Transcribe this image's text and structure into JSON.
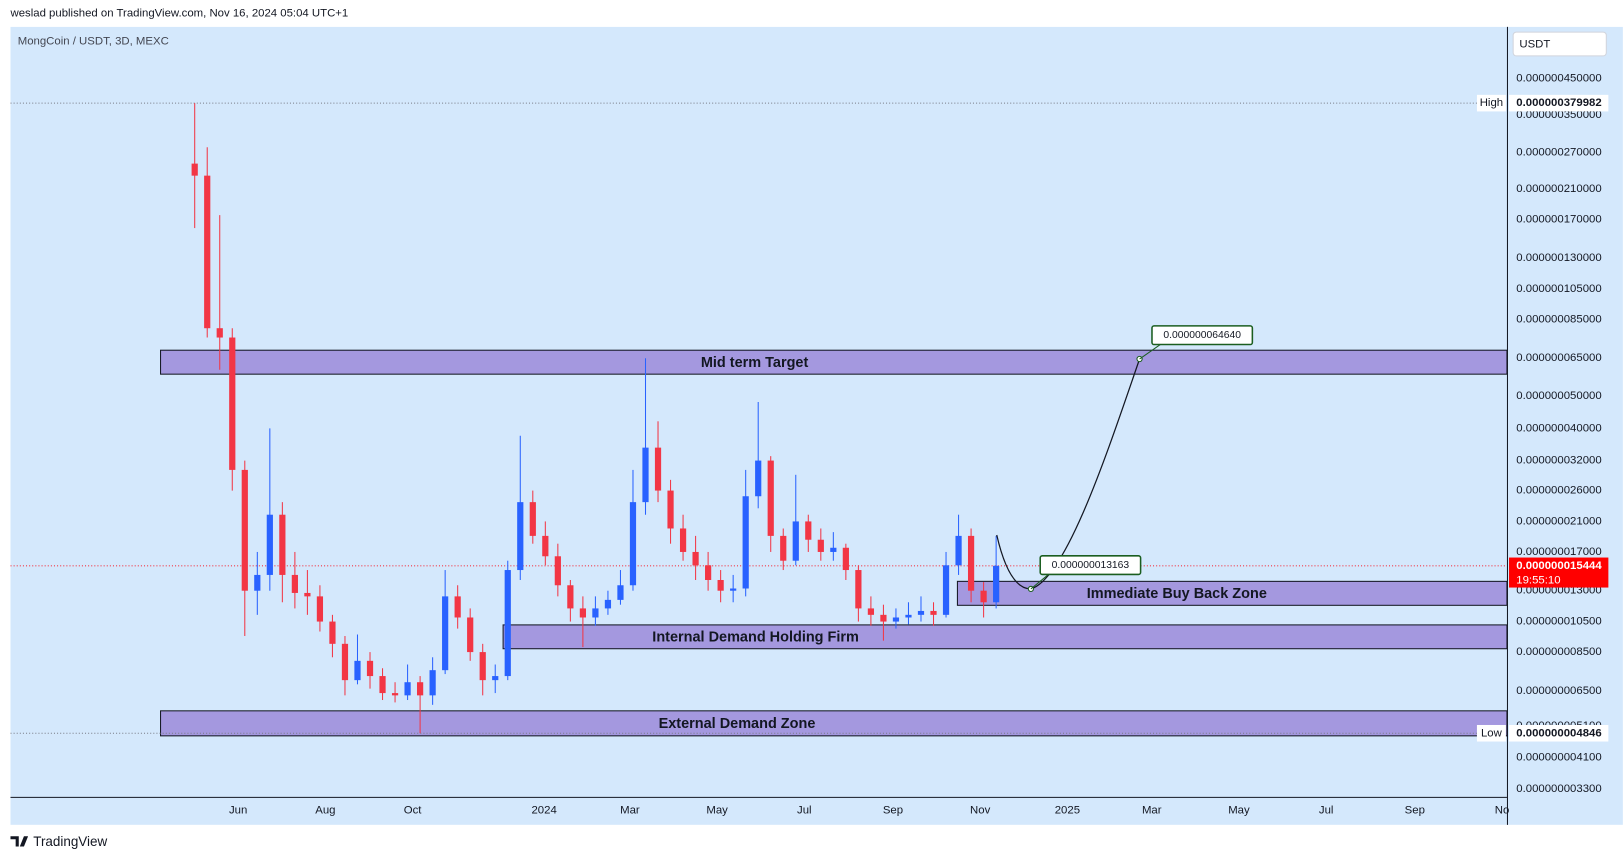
{
  "chart_data": {
    "type": "candlestick",
    "header": "weslad published on TradingView.com, Nov 16, 2024 05:04 UTC+1",
    "symbol": "MongCoin / USDT, 3D, MEXC",
    "currency": "USDT",
    "brand": "TradingView",
    "log_scale": true,
    "up_color": "#2962ff",
    "down_color": "#f23645",
    "ylim": [
      3.12e-09,
      6.44e-07
    ],
    "yticks": [
      {
        "value": 4.5e-07,
        "label": "0.000000450000"
      },
      {
        "value": 3.5e-07,
        "label": "0.000000350000"
      },
      {
        "value": 2.7e-07,
        "label": "0.000000270000"
      },
      {
        "value": 2.1e-07,
        "label": "0.000000210000"
      },
      {
        "value": 1.7e-07,
        "label": "0.000000170000"
      },
      {
        "value": 1.3e-07,
        "label": "0.000000130000"
      },
      {
        "value": 1.05e-07,
        "label": "0.000000105000"
      },
      {
        "value": 8.5e-08,
        "label": "0.000000085000"
      },
      {
        "value": 6.5e-08,
        "label": "0.000000065000"
      },
      {
        "value": 5e-08,
        "label": "0.000000050000"
      },
      {
        "value": 4e-08,
        "label": "0.000000040000"
      },
      {
        "value": 3.2e-08,
        "label": "0.000000032000"
      },
      {
        "value": 2.6e-08,
        "label": "0.000000026000"
      },
      {
        "value": 2.1e-08,
        "label": "0.000000021000"
      },
      {
        "value": 1.7e-08,
        "label": "0.000000017000"
      },
      {
        "value": 1.3e-08,
        "label": "0.000000013000"
      },
      {
        "value": 1.05e-08,
        "label": "0.000000010500"
      },
      {
        "value": 8.5e-09,
        "label": "0.000000008500"
      },
      {
        "value": 6.5e-09,
        "label": "0.000000006500"
      },
      {
        "value": 5.1e-09,
        "label": "0.000000005100"
      },
      {
        "value": 4.1e-09,
        "label": "0.000000004100"
      },
      {
        "value": 3.3e-09,
        "label": "0.000000003300"
      }
    ],
    "xticks": [
      {
        "value": "2023-06",
        "label": "Jun"
      },
      {
        "value": "2023-08",
        "label": "Aug"
      },
      {
        "value": "2023-10",
        "label": "Oct"
      },
      {
        "value": "2024-01",
        "label": "2024"
      },
      {
        "value": "2024-03",
        "label": "Mar"
      },
      {
        "value": "2024-05",
        "label": "May"
      },
      {
        "value": "2024-07",
        "label": "Jul"
      },
      {
        "value": "2024-09",
        "label": "Sep"
      },
      {
        "value": "2024-11",
        "label": "Nov"
      },
      {
        "value": "2025-01",
        "label": "2025"
      },
      {
        "value": "2025-03",
        "label": "Mar"
      },
      {
        "value": "2025-05",
        "label": "May"
      },
      {
        "value": "2025-07",
        "label": "Jul"
      },
      {
        "value": "2025-09",
        "label": "Sep"
      },
      {
        "value": "2025-11",
        "label": "No"
      }
    ],
    "high": {
      "name": "High",
      "value": 3.79982e-07,
      "label": "0.000000379982"
    },
    "low": {
      "name": "Low",
      "value": 4.846e-09,
      "label": "0.000000004846"
    },
    "last": {
      "value": 1.5444e-08,
      "label": "0.000000015444",
      "countdown": "19:55:10"
    },
    "zones": [
      {
        "label": "Mid term Target",
        "top": 6.87e-08,
        "bottom": 5.82e-08
      },
      {
        "label": "Immediate Buy Back Zone",
        "top": 1.387e-08,
        "bottom": 1.175e-08
      },
      {
        "label": "Internal Demand Holding Firm",
        "top": 1.026e-08,
        "bottom": 8.7e-09
      },
      {
        "label": "External Demand Zone",
        "top": 5.66e-09,
        "bottom": 4.76e-09
      }
    ],
    "annotations": [
      {
        "value": 1.3163e-08,
        "label": "0.000000013163"
      },
      {
        "value": 6.464e-08,
        "label": "0.000000064640"
      }
    ],
    "candles": [
      [
        2.5e-07,
        3.79982e-07,
        1.6e-07,
        2.3e-07
      ],
      [
        2.3e-07,
        2.8e-07,
        7.5e-08,
        8e-08
      ],
      [
        8e-08,
        1.75e-07,
        6e-08,
        7.5e-08
      ],
      [
        7.5e-08,
        8e-08,
        2.6e-08,
        3e-08
      ],
      [
        3e-08,
        3.2e-08,
        9.5e-09,
        1.3e-08
      ],
      [
        1.3e-08,
        1.7e-08,
        1.1e-08,
        1.45e-08
      ],
      [
        1.45e-08,
        4e-08,
        1.3e-08,
        2.2e-08
      ],
      [
        2.2e-08,
        2.4e-08,
        1.2e-08,
        1.45e-08
      ],
      [
        1.45e-08,
        1.7e-08,
        1.15e-08,
        1.28e-08
      ],
      [
        1.28e-08,
        1.5e-08,
        1.1e-08,
        1.25e-08
      ],
      [
        1.25e-08,
        1.35e-08,
        9.8e-09,
        1.05e-08
      ],
      [
        1.05e-08,
        1.1e-08,
        8.2e-09,
        9e-09
      ],
      [
        9e-09,
        9.5e-09,
        6.3e-09,
        7e-09
      ],
      [
        7e-09,
        9.6e-09,
        6.8e-09,
        8e-09
      ],
      [
        8e-09,
        8.5e-09,
        6.6e-09,
        7.2e-09
      ],
      [
        7.2e-09,
        7.6e-09,
        6.1e-09,
        6.4e-09
      ],
      [
        6.4e-09,
        6.9e-09,
        6e-09,
        6.3e-09
      ],
      [
        6.3e-09,
        7.8e-09,
        6.1e-09,
        6.9e-09
      ],
      [
        6.9e-09,
        7.2e-09,
        4.846e-09,
        6.3e-09
      ],
      [
        6.3e-09,
        8.2e-09,
        5.9e-09,
        7.5e-09
      ],
      [
        7.5e-09,
        1.5e-08,
        7.3e-09,
        1.25e-08
      ],
      [
        1.25e-08,
        1.35e-08,
        1e-08,
        1.08e-08
      ],
      [
        1.08e-08,
        1.15e-08,
        8e-09,
        8.5e-09
      ],
      [
        8.5e-09,
        9e-09,
        6.3e-09,
        7e-09
      ],
      [
        7e-09,
        7.8e-09,
        6.4e-09,
        7.2e-09
      ],
      [
        7.2e-09,
        1.6e-08,
        7e-09,
        1.5e-08
      ],
      [
        1.5e-08,
        3.8e-08,
        1.4e-08,
        2.4e-08
      ],
      [
        2.4e-08,
        2.6e-08,
        1.8e-08,
        1.9e-08
      ],
      [
        1.9e-08,
        2.1e-08,
        1.55e-08,
        1.65e-08
      ],
      [
        1.65e-08,
        1.8e-08,
        1.25e-08,
        1.35e-08
      ],
      [
        1.35e-08,
        1.4e-08,
        1.05e-08,
        1.15e-08
      ],
      [
        1.15e-08,
        1.25e-08,
        8.8e-09,
        1.08e-08
      ],
      [
        1.08e-08,
        1.25e-08,
        1.02e-08,
        1.15e-08
      ],
      [
        1.15e-08,
        1.3e-08,
        1.1e-08,
        1.22e-08
      ],
      [
        1.22e-08,
        1.5e-08,
        1.18e-08,
        1.35e-08
      ],
      [
        1.35e-08,
        3e-08,
        1.3e-08,
        2.4e-08
      ],
      [
        2.4e-08,
        6.5e-08,
        2.2e-08,
        3.5e-08
      ],
      [
        3.5e-08,
        4.2e-08,
        2.4e-08,
        2.6e-08
      ],
      [
        2.6e-08,
        2.8e-08,
        1.8e-08,
        2e-08
      ],
      [
        2e-08,
        2.2e-08,
        1.6e-08,
        1.7e-08
      ],
      [
        1.7e-08,
        1.9e-08,
        1.4e-08,
        1.55e-08
      ],
      [
        1.55e-08,
        1.7e-08,
        1.3e-08,
        1.4e-08
      ],
      [
        1.4e-08,
        1.5e-08,
        1.2e-08,
        1.3e-08
      ],
      [
        1.3e-08,
        1.45e-08,
        1.2e-08,
        1.32e-08
      ],
      [
        1.32e-08,
        3e-08,
        1.25e-08,
        2.5e-08
      ],
      [
        2.5e-08,
        4.8e-08,
        2.3e-08,
        3.2e-08
      ],
      [
        3.2e-08,
        3.3e-08,
        1.7e-08,
        1.9e-08
      ],
      [
        1.9e-08,
        2e-08,
        1.5e-08,
        1.6e-08
      ],
      [
        1.6e-08,
        2.9e-08,
        1.55e-08,
        2.1e-08
      ],
      [
        2.1e-08,
        2.2e-08,
        1.7e-08,
        1.85e-08
      ],
      [
        1.85e-08,
        2e-08,
        1.6e-08,
        1.7e-08
      ],
      [
        1.7e-08,
        1.95e-08,
        1.6e-08,
        1.75e-08
      ],
      [
        1.75e-08,
        1.8e-08,
        1.4e-08,
        1.5e-08
      ],
      [
        1.5e-08,
        1.55e-08,
        1.05e-08,
        1.15e-08
      ],
      [
        1.15e-08,
        1.25e-08,
        1.02e-08,
        1.1e-08
      ],
      [
        1.1e-08,
        1.18e-08,
        9.2e-09,
        1.05e-08
      ],
      [
        1.05e-08,
        1.15e-08,
        1e-08,
        1.08e-08
      ],
      [
        1.08e-08,
        1.2e-08,
        1.03e-08,
        1.1e-08
      ],
      [
        1.1e-08,
        1.25e-08,
        1.05e-08,
        1.13e-08
      ],
      [
        1.13e-08,
        1.2e-08,
        1.02e-08,
        1.1e-08
      ],
      [
        1.1e-08,
        1.7e-08,
        1.08e-08,
        1.55e-08
      ],
      [
        1.55e-08,
        2.2e-08,
        1.45e-08,
        1.9e-08
      ],
      [
        1.9e-08,
        2e-08,
        1.2e-08,
        1.3e-08
      ],
      [
        1.3e-08,
        1.38e-08,
        1.08e-08,
        1.2e-08
      ],
      [
        1.2e-08,
        1.9e-08,
        1.15e-08,
        1.5444e-08
      ]
    ]
  }
}
